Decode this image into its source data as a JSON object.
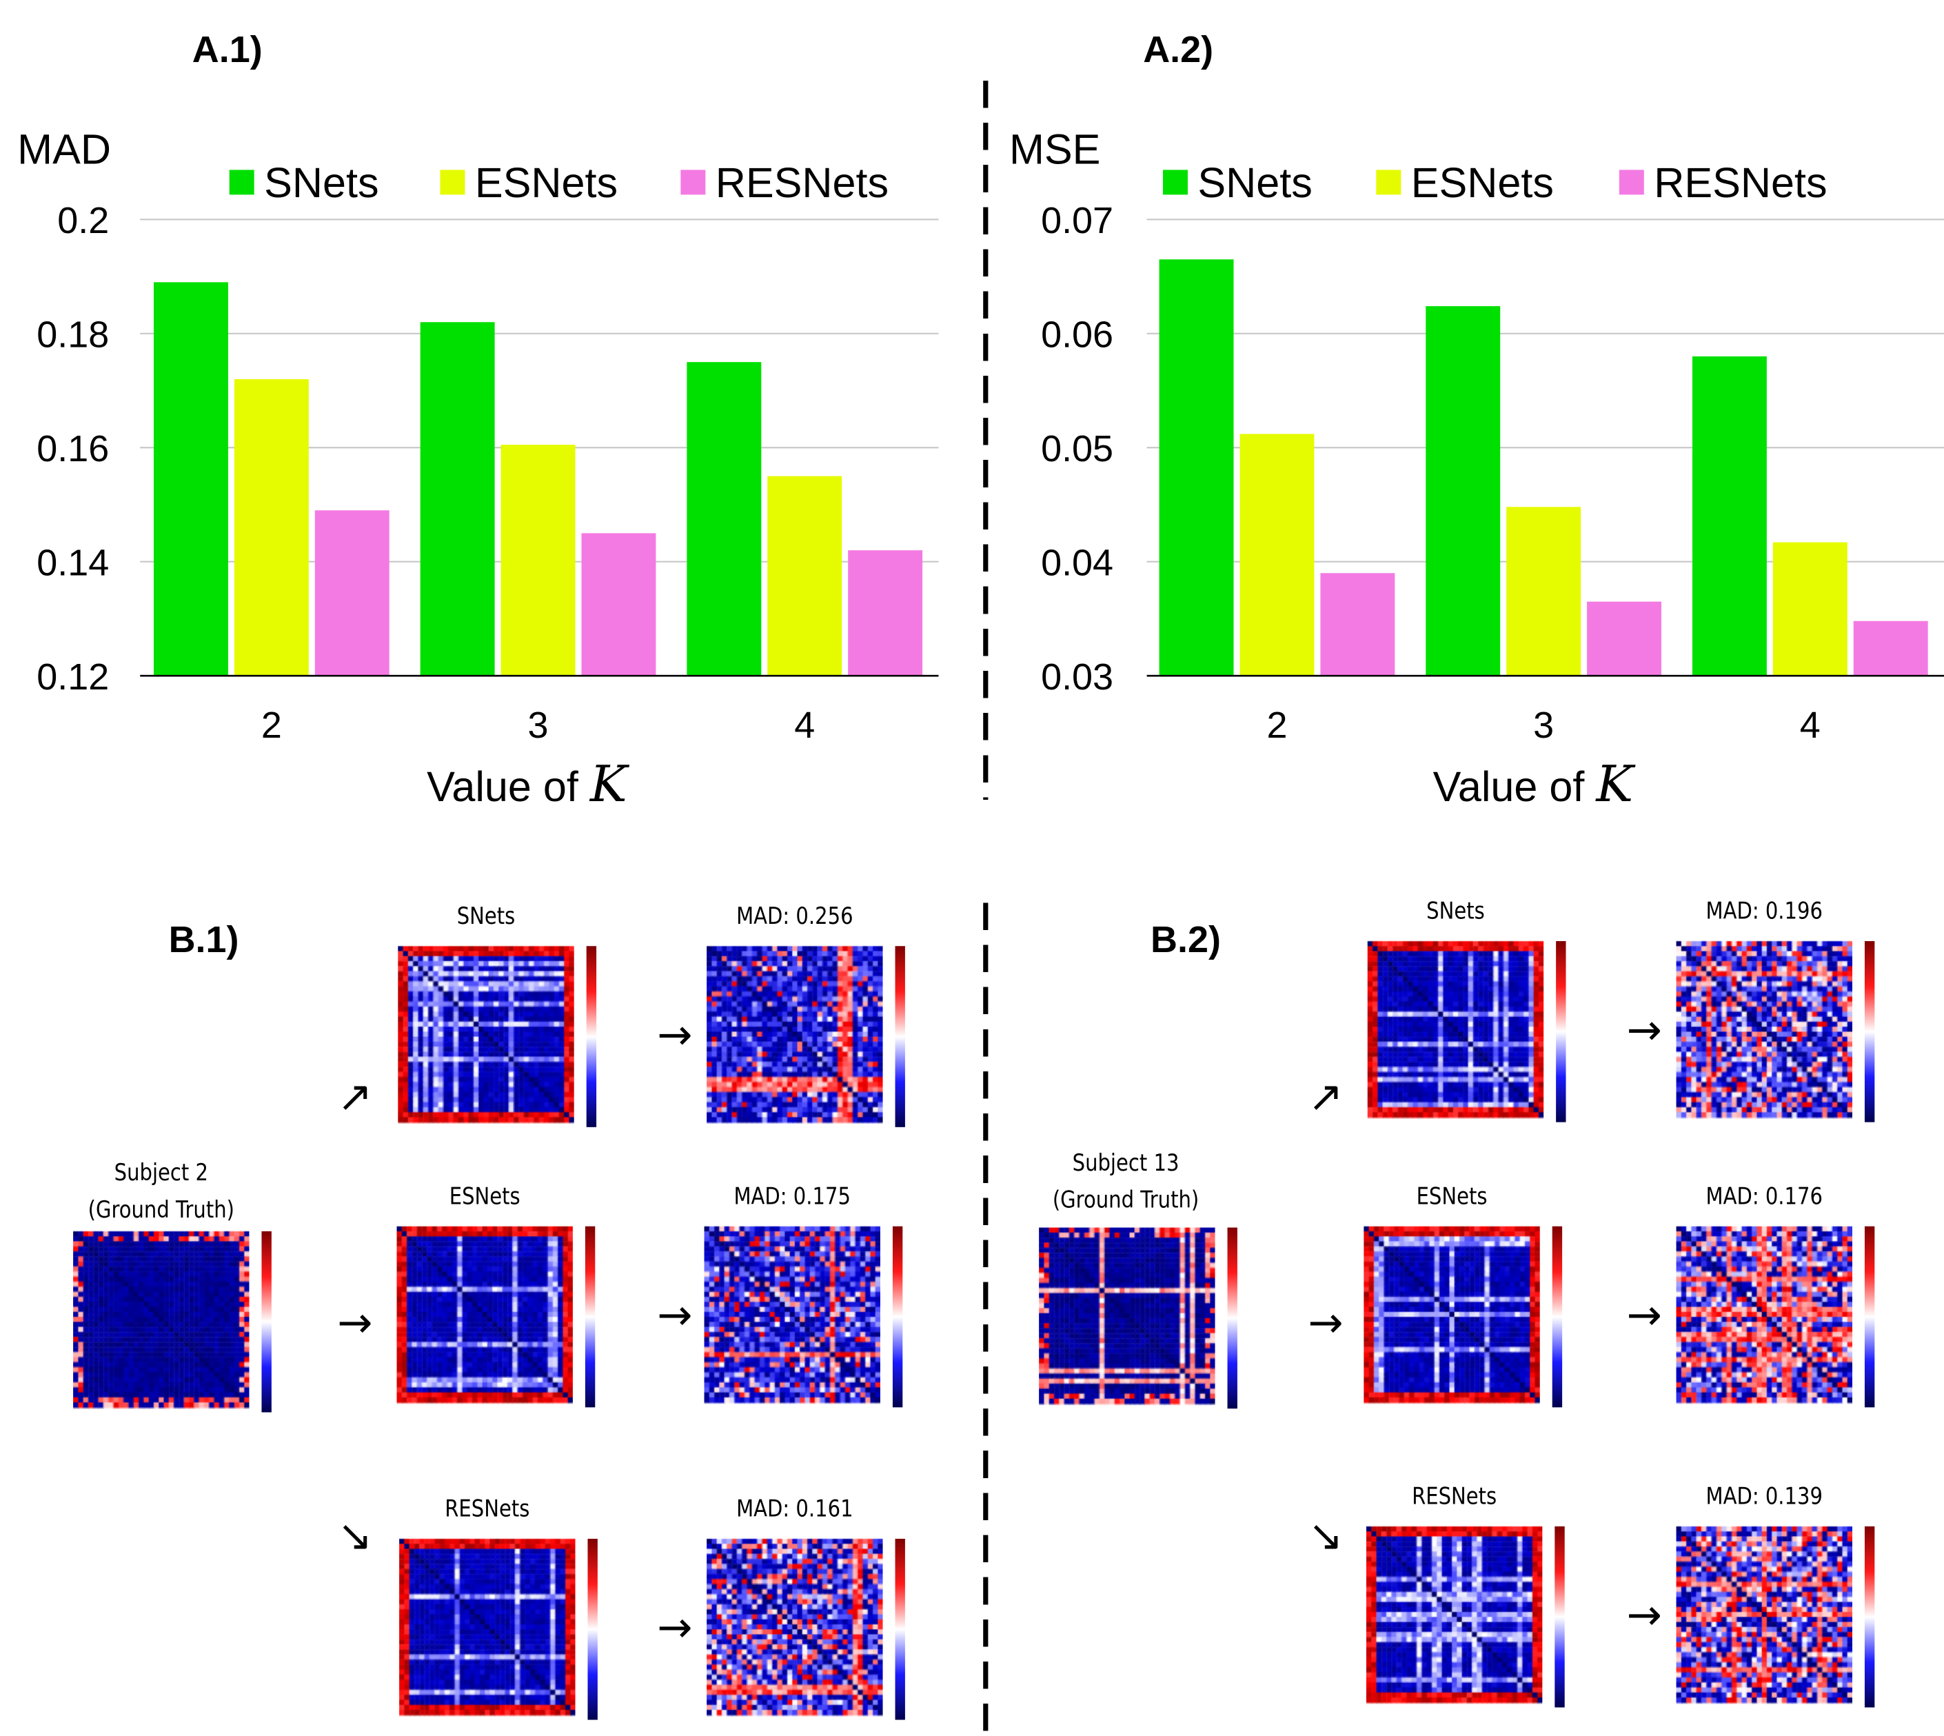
{
  "panels": {
    "a1": "A.1)",
    "a2": "A.2)",
    "b1": "B.1)",
    "b2": "B.2)"
  },
  "colors": {
    "SNets": "#00e000",
    "ESNets": "#e5fb00",
    "RESNets": "#f47ae3",
    "grid": "#c8c8c8"
  },
  "chart_data": [
    {
      "type": "bar",
      "ylabel": "MAD",
      "xlabel": "Value of K",
      "categories": [
        "2",
        "3",
        "4"
      ],
      "ylim": [
        0.12,
        0.2
      ],
      "yticks": [
        "0.2",
        "0.18",
        "0.16",
        "0.14",
        "0.12"
      ],
      "ytick_values": [
        0.2,
        0.18,
        0.16,
        0.14,
        0.12
      ],
      "grid": true,
      "legend": "top",
      "series": [
        {
          "name": "SNets",
          "values": [
            0.189,
            0.182,
            0.175
          ]
        },
        {
          "name": "ESNets",
          "values": [
            0.172,
            0.1605,
            0.155
          ]
        },
        {
          "name": "RESNets",
          "values": [
            0.149,
            0.145,
            0.142
          ]
        }
      ]
    },
    {
      "type": "bar",
      "ylabel": "MSE",
      "xlabel": "Value of K",
      "categories": [
        "2",
        "3",
        "4"
      ],
      "ylim": [
        0.03,
        0.07
      ],
      "yticks": [
        "0.07",
        "0.06",
        "0.05",
        "0.04",
        "0.03"
      ],
      "ytick_values": [
        0.07,
        0.06,
        0.05,
        0.04,
        0.03
      ],
      "grid": true,
      "legend": "top",
      "series": [
        {
          "name": "SNets",
          "values": [
            0.0665,
            0.0624,
            0.058
          ]
        },
        {
          "name": "ESNets",
          "values": [
            0.0512,
            0.0448,
            0.0417
          ]
        },
        {
          "name": "RESNets",
          "values": [
            0.039,
            0.0365,
            0.0348
          ]
        }
      ]
    }
  ],
  "heatmaps": {
    "b1": {
      "subject": "Subject 2",
      "ground_truth": "(Ground Truth)",
      "snets": "SNets",
      "esnets": "ESNets",
      "resnets": "RESNets",
      "mad_snets": "MAD: 0.256",
      "mad_esnets": "MAD: 0.175",
      "mad_resnets": "MAD: 0.161"
    },
    "b2": {
      "subject": "Subject 13",
      "ground_truth": "(Ground Truth)",
      "snets": "SNets",
      "esnets": "ESNets",
      "resnets": "RESNets",
      "mad_snets": "MAD: 0.196",
      "mad_esnets": "MAD: 0.176",
      "mad_resnets": "MAD: 0.139"
    }
  },
  "arrows": {
    "up": "↗",
    "right": "→",
    "down": "↘"
  }
}
